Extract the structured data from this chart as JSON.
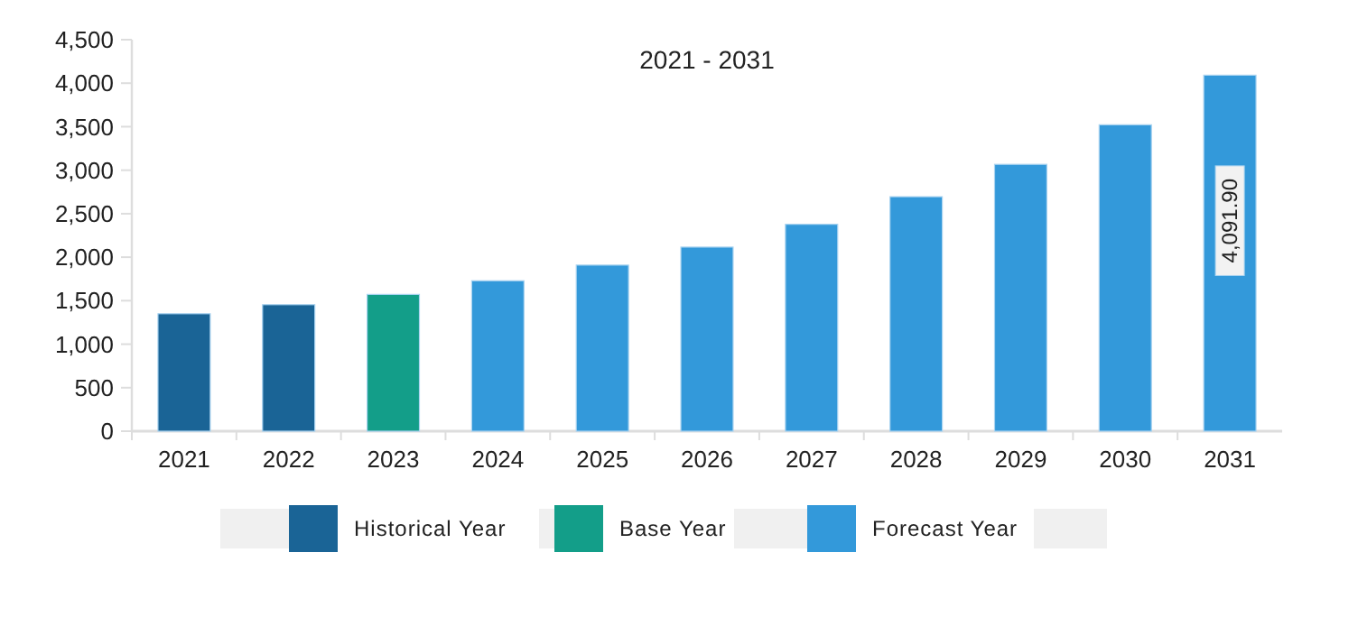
{
  "chart_data": {
    "type": "bar",
    "title": "2021 - 2031",
    "categories": [
      "2021",
      "2022",
      "2023",
      "2024",
      "2025",
      "2026",
      "2027",
      "2028",
      "2029",
      "2030",
      "2031"
    ],
    "stacked": true,
    "series": [
      {
        "name": "Historical Year",
        "color": "#1a6496",
        "values": [
          1350,
          1454,
          null,
          null,
          null,
          null,
          null,
          null,
          null,
          null,
          null
        ]
      },
      {
        "name": "Base Year",
        "color": "#139e89",
        "values": [
          null,
          null,
          1572,
          null,
          null,
          null,
          null,
          null,
          null,
          null,
          null
        ]
      },
      {
        "name": "Forecast Year",
        "color": "#3399da",
        "values": [
          null,
          null,
          null,
          1729,
          1909,
          2116,
          2378,
          2695,
          3067,
          3522,
          4091.9
        ],
        "value_labels": [
          null,
          null,
          null,
          null,
          null,
          null,
          null,
          null,
          null,
          null,
          "4,091.90"
        ]
      }
    ],
    "ylim": [
      0,
      4500
    ],
    "yticks": [
      0,
      500,
      {
        "value": 1000,
        "label": "1,000"
      },
      {
        "value": 1500,
        "label": "1,500"
      },
      {
        "value": 2000,
        "label": "2,000"
      },
      {
        "value": 2500,
        "label": "2,500"
      },
      {
        "value": 3000,
        "label": "3,000"
      },
      {
        "value": 3500,
        "label": "3,500"
      },
      {
        "value": 4000,
        "label": "4,000"
      },
      {
        "value": 4500,
        "label": "4,500"
      }
    ],
    "grid": false,
    "legend": "bottom"
  }
}
